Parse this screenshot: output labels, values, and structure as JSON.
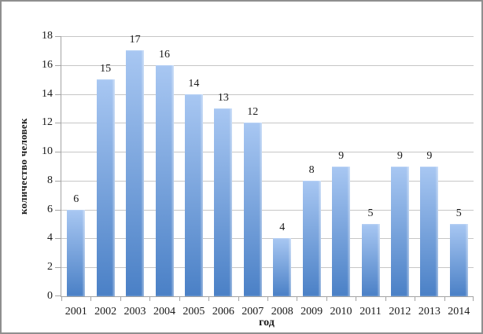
{
  "chart_data": {
    "type": "bar",
    "title": "",
    "xlabel": "год",
    "ylabel": "количество человек",
    "categories": [
      "2001",
      "2002",
      "2003",
      "2004",
      "2005",
      "2006",
      "2007",
      "2008",
      "2009",
      "2010",
      "2011",
      "2012",
      "2013",
      "2014"
    ],
    "values": [
      6,
      15,
      17,
      16,
      14,
      13,
      12,
      4,
      8,
      9,
      5,
      9,
      9,
      5
    ],
    "ylim": [
      0,
      18
    ],
    "yticks": [
      0,
      2,
      4,
      6,
      8,
      10,
      12,
      14,
      16,
      18
    ],
    "grid": true,
    "legend": "none",
    "colors": {
      "bar_gradient_top": "#a8c7f2",
      "bar_gradient_bottom": "#4a80c6",
      "gridline": "#c6c6c6",
      "axis": "#a3a3a3",
      "text": "#1a1a1a",
      "frame_border": "#8f8f8f",
      "background": "#ffffff"
    }
  }
}
